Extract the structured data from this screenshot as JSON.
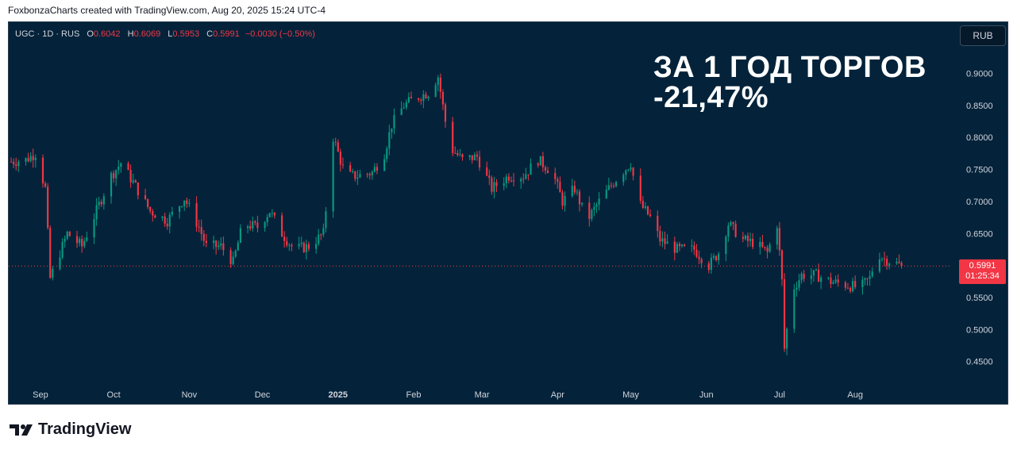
{
  "caption": "FoxbonzaCharts created with TradingView.com, Aug 20, 2025 15:24 UTC-4",
  "legend": {
    "symbol": "UGC · 1D · RUS",
    "open_label": "O",
    "open": "0.6042",
    "high_label": "H",
    "high": "0.6069",
    "low_label": "L",
    "low": "0.5953",
    "close_label": "C",
    "close": "0.5991",
    "change": "−0.0030 (−0.50%)"
  },
  "currency": "RUB",
  "headline": {
    "line1": "ЗА 1 ГОД ТОРГОВ",
    "line2": "-21,47%"
  },
  "last_price": {
    "price": "0.5991",
    "countdown": "01:25:34"
  },
  "brand": "TradingView",
  "colors": {
    "up": "#089981",
    "down": "#f23645",
    "background": "#04233a",
    "axis_text": "#d1d4dc"
  },
  "chart_data": {
    "type": "candlestick",
    "title": "",
    "y_ticks": [
      0.45,
      0.5,
      0.55,
      0.6,
      0.65,
      0.7,
      0.75,
      0.8,
      0.85,
      0.9
    ],
    "y_tick_labels": [
      "0.4500",
      "0.5000",
      "0.5500",
      "0.6000",
      "0.6500",
      "0.7000",
      "0.7500",
      "0.8000",
      "0.8500",
      "0.9000"
    ],
    "ylim": [
      0.415,
      0.96
    ],
    "x_labels": [
      "Sep",
      "Oct",
      "Nov",
      "Dec",
      "2025",
      "Feb",
      "Mar",
      "Apr",
      "May",
      "Jun",
      "Jul",
      "Aug"
    ],
    "x_label_dates": [
      "2024-09-01",
      "2024-10-01",
      "2024-11-01",
      "2024-12-01",
      "2025-01-01",
      "2025-02-01",
      "2025-03-01",
      "2025-04-01",
      "2025-05-01",
      "2025-06-01",
      "2025-07-01",
      "2025-08-01"
    ],
    "xlim": [
      "2024-08-19",
      "2025-09-09"
    ],
    "last_close": 0.5991,
    "closes": [
      {
        "date": "2024-08-20",
        "close": 0.762
      },
      {
        "date": "2024-08-26",
        "close": 0.765
      },
      {
        "date": "2024-08-30",
        "close": 0.775
      },
      {
        "date": "2024-09-03",
        "close": 0.72
      },
      {
        "date": "2024-09-05",
        "close": 0.58
      },
      {
        "date": "2024-09-07",
        "close": 0.6
      },
      {
        "date": "2024-09-12",
        "close": 0.65
      },
      {
        "date": "2024-09-18",
        "close": 0.63
      },
      {
        "date": "2024-09-25",
        "close": 0.695
      },
      {
        "date": "2024-09-30",
        "close": 0.74
      },
      {
        "date": "2024-10-04",
        "close": 0.76
      },
      {
        "date": "2024-10-09",
        "close": 0.73
      },
      {
        "date": "2024-10-16",
        "close": 0.685
      },
      {
        "date": "2024-10-23",
        "close": 0.67
      },
      {
        "date": "2024-10-30",
        "close": 0.705
      },
      {
        "date": "2024-11-05",
        "close": 0.66
      },
      {
        "date": "2024-11-08",
        "close": 0.63
      },
      {
        "date": "2024-11-14",
        "close": 0.63
      },
      {
        "date": "2024-11-19",
        "close": 0.605
      },
      {
        "date": "2024-11-23",
        "close": 0.665
      },
      {
        "date": "2024-11-29",
        "close": 0.66
      },
      {
        "date": "2024-12-04",
        "close": 0.685
      },
      {
        "date": "2024-12-09",
        "close": 0.65
      },
      {
        "date": "2024-12-14",
        "close": 0.625
      },
      {
        "date": "2024-12-20",
        "close": 0.63
      },
      {
        "date": "2024-12-26",
        "close": 0.65
      },
      {
        "date": "2024-12-30",
        "close": 0.8
      },
      {
        "date": "2025-01-04",
        "close": 0.74
      },
      {
        "date": "2025-01-09",
        "close": 0.74
      },
      {
        "date": "2025-01-15",
        "close": 0.745
      },
      {
        "date": "2025-01-20",
        "close": 0.775
      },
      {
        "date": "2025-01-23",
        "close": 0.82
      },
      {
        "date": "2025-01-28",
        "close": 0.85
      },
      {
        "date": "2025-02-01",
        "close": 0.86
      },
      {
        "date": "2025-02-07",
        "close": 0.87
      },
      {
        "date": "2025-02-11",
        "close": 0.895
      },
      {
        "date": "2025-02-14",
        "close": 0.825
      },
      {
        "date": "2025-02-17",
        "close": 0.78
      },
      {
        "date": "2025-02-21",
        "close": 0.765
      },
      {
        "date": "2025-02-27",
        "close": 0.77
      },
      {
        "date": "2025-03-05",
        "close": 0.72
      },
      {
        "date": "2025-03-12",
        "close": 0.74
      },
      {
        "date": "2025-03-18",
        "close": 0.74
      },
      {
        "date": "2025-03-24",
        "close": 0.765
      },
      {
        "date": "2025-03-30",
        "close": 0.745
      },
      {
        "date": "2025-04-03",
        "close": 0.7
      },
      {
        "date": "2025-04-08",
        "close": 0.72
      },
      {
        "date": "2025-04-13",
        "close": 0.67
      },
      {
        "date": "2025-04-18",
        "close": 0.7
      },
      {
        "date": "2025-04-25",
        "close": 0.735
      },
      {
        "date": "2025-05-01",
        "close": 0.76
      },
      {
        "date": "2025-05-04",
        "close": 0.7
      },
      {
        "date": "2025-05-09",
        "close": 0.675
      },
      {
        "date": "2025-05-13",
        "close": 0.64
      },
      {
        "date": "2025-05-20",
        "close": 0.625
      },
      {
        "date": "2025-05-27",
        "close": 0.625
      },
      {
        "date": "2025-06-02",
        "close": 0.6
      },
      {
        "date": "2025-06-06",
        "close": 0.62
      },
      {
        "date": "2025-06-10",
        "close": 0.665
      },
      {
        "date": "2025-06-16",
        "close": 0.64
      },
      {
        "date": "2025-06-21",
        "close": 0.635
      },
      {
        "date": "2025-06-26",
        "close": 0.62
      },
      {
        "date": "2025-06-30",
        "close": 0.665
      },
      {
        "date": "2025-07-02",
        "close": 0.575
      },
      {
        "date": "2025-07-03",
        "close": 0.47
      },
      {
        "date": "2025-07-06",
        "close": 0.56
      },
      {
        "date": "2025-07-10",
        "close": 0.585
      },
      {
        "date": "2025-07-16",
        "close": 0.585
      },
      {
        "date": "2025-07-22",
        "close": 0.575
      },
      {
        "date": "2025-07-28",
        "close": 0.57
      },
      {
        "date": "2025-08-03",
        "close": 0.565
      },
      {
        "date": "2025-08-07",
        "close": 0.58
      },
      {
        "date": "2025-08-10",
        "close": 0.62
      },
      {
        "date": "2025-08-13",
        "close": 0.61
      },
      {
        "date": "2025-08-17",
        "close": 0.605
      },
      {
        "date": "2025-08-20",
        "close": 0.5991
      }
    ]
  }
}
